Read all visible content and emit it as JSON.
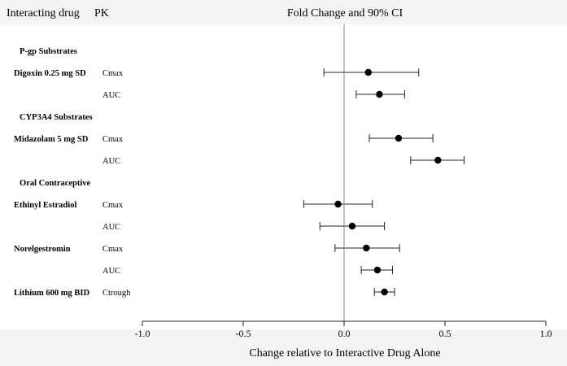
{
  "headers": {
    "col_drug": "Interacting drug",
    "col_pk": "PK",
    "col_plot": "Fold Change and 90% CI"
  },
  "chart_data": {
    "type": "scatter",
    "title": "Fold Change and 90% CI",
    "xlabel": "Change relative to Interactive Drug Alone",
    "xlim": [
      -1.0,
      1.0
    ],
    "xticks": [
      -1.0,
      -0.5,
      0.0,
      0.5,
      1.0
    ],
    "xtick_labels": [
      "-1.0",
      "-0.5",
      "0.0",
      "0.5",
      "1.0"
    ],
    "reference_line": 0.0,
    "rows": [
      {
        "group": "P-gp Substrates"
      },
      {
        "drug": "Digoxin 0.25 mg SD",
        "pk": "Cmax",
        "estimate": 0.12,
        "lower": -0.1,
        "upper": 0.37
      },
      {
        "drug": "",
        "pk": "AUC",
        "estimate": 0.175,
        "lower": 0.06,
        "upper": 0.3
      },
      {
        "group": "CYP3A4 Substrates"
      },
      {
        "drug": "Midazolam 5 mg SD",
        "pk": "Cmax",
        "estimate": 0.27,
        "lower": 0.125,
        "upper": 0.44
      },
      {
        "drug": "",
        "pk": "AUC",
        "estimate": 0.465,
        "lower": 0.33,
        "upper": 0.595
      },
      {
        "group": "Oral Contraceptive"
      },
      {
        "drug": "Ethinyl Estradiol",
        "pk": "Cmax",
        "estimate": -0.03,
        "lower": -0.2,
        "upper": 0.14
      },
      {
        "drug": "",
        "pk": "AUC",
        "estimate": 0.04,
        "lower": -0.12,
        "upper": 0.2
      },
      {
        "drug": "Norelgestromin",
        "pk": "Cmax",
        "estimate": 0.11,
        "lower": -0.045,
        "upper": 0.275
      },
      {
        "drug": "",
        "pk": "AUC",
        "estimate": 0.165,
        "lower": 0.085,
        "upper": 0.24
      },
      {
        "drug": "Lithium 600 mg BID",
        "pk": "Ctrough",
        "estimate": 0.2,
        "lower": 0.15,
        "upper": 0.25
      }
    ]
  }
}
